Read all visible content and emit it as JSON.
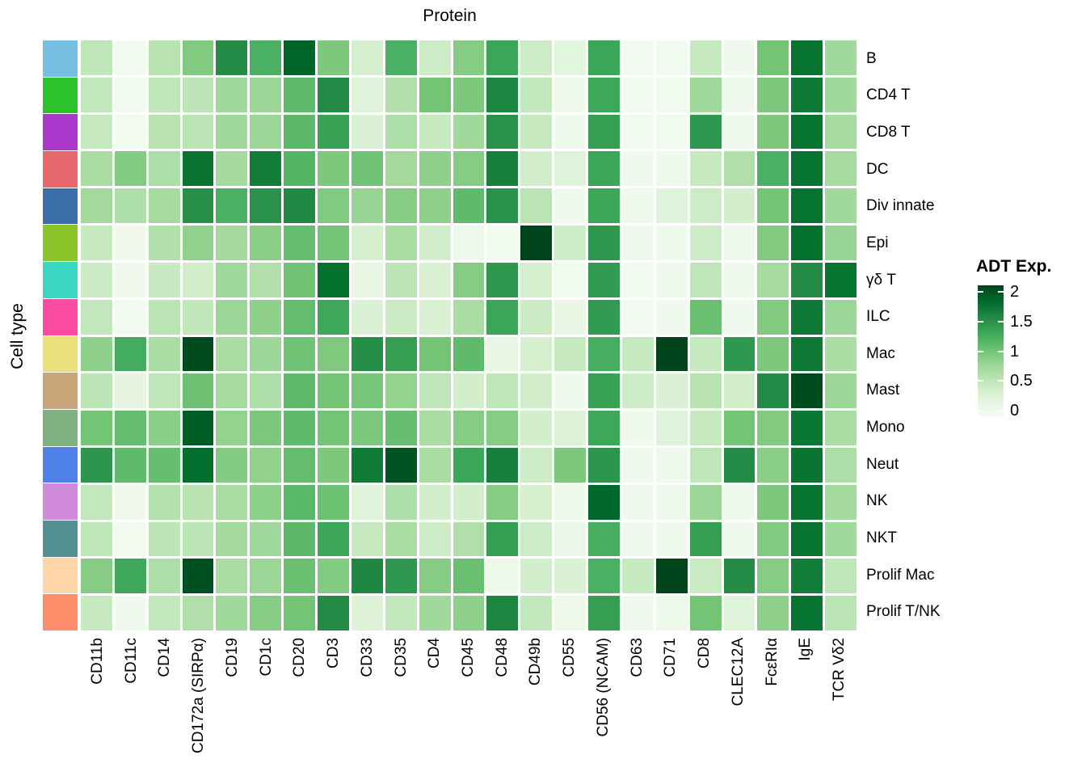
{
  "title": "Protein",
  "y_axis_title": "Cell type",
  "legend": {
    "title": "ADT Exp.",
    "tick_values": [
      2,
      1.5,
      1,
      0.5,
      0
    ],
    "tick_labels": [
      "2",
      "1.5",
      "1",
      "0.5",
      "0"
    ],
    "min": 0,
    "max": 2,
    "color_low": "#f7fcf5",
    "color_high": "#00441b"
  },
  "cell_type_annotation_colors": [
    {
      "label": "B",
      "color": "#76bfe3"
    },
    {
      "label": "CD4 T",
      "color": "#2cc22a"
    },
    {
      "label": "CD8 T",
      "color": "#aa38ca"
    },
    {
      "label": "DC",
      "color": "#e7686c"
    },
    {
      "label": "Div innate",
      "color": "#3a6fa8"
    },
    {
      "label": "Epi",
      "color": "#8bc42b"
    },
    {
      "label": "γδ T",
      "color": "#3ad8c2"
    },
    {
      "label": "ILC",
      "color": "#fb4ba3"
    },
    {
      "label": "Mac",
      "color": "#e9e07a"
    },
    {
      "label": "Mast",
      "color": "#c8a67a"
    },
    {
      "label": "Mono",
      "color": "#7db280"
    },
    {
      "label": "Neut",
      "color": "#4e80e8"
    },
    {
      "label": "NK",
      "color": "#d18bdd"
    },
    {
      "label": "NKT",
      "color": "#529091"
    },
    {
      "label": "Prolif Mac",
      "color": "#fdd5a7"
    },
    {
      "label": "Prolif T/NK",
      "color": "#fc8d6a"
    }
  ],
  "chart_data": {
    "type": "heatmap",
    "title": "Protein",
    "x_axis_label": "Protein",
    "y_axis_label": "Cell type",
    "value_label": "ADT Exp.",
    "value_range": [
      0,
      2
    ],
    "colormap": "Greens",
    "colormap_ramp": [
      "#f7fcf5",
      "#e5f5e0",
      "#c7e9c0",
      "#a1d99b",
      "#74c476",
      "#41ab5d",
      "#238b45",
      "#006d2c",
      "#00441b"
    ],
    "x_categories": [
      "CD11b",
      "CD11c",
      "CD14",
      "CD172a (SIRPα)",
      "CD19",
      "CD1c",
      "CD20",
      "CD3",
      "CD33",
      "CD35",
      "CD4",
      "CD45",
      "CD48",
      "CD49b",
      "CD55",
      "CD56 (NCAM)",
      "CD63",
      "CD71",
      "CD8",
      "CLEC12A",
      "FcεRIα",
      "IgE",
      "TCR Vδ2"
    ],
    "y_categories": [
      "B",
      "CD4 T",
      "CD8 T",
      "DC",
      "Div innate",
      "Epi",
      "γδ T",
      "ILC",
      "Mac",
      "Mast",
      "Mono",
      "Neut",
      "NK",
      "NKT",
      "Prolif Mac",
      "Prolif T/NK"
    ],
    "values": [
      [
        0.55,
        0.08,
        0.6,
        0.93,
        1.5,
        1.2,
        1.8,
        0.95,
        0.38,
        1.2,
        0.45,
        0.9,
        1.3,
        0.45,
        0.28,
        1.3,
        0.08,
        0.08,
        0.5,
        0.1,
        1.0,
        1.7,
        0.75
      ],
      [
        0.52,
        0.08,
        0.55,
        0.56,
        0.75,
        0.78,
        1.1,
        1.5,
        0.3,
        0.65,
        1.0,
        0.95,
        1.55,
        0.52,
        0.12,
        1.28,
        0.08,
        0.08,
        0.75,
        0.1,
        0.95,
        1.65,
        0.75
      ],
      [
        0.51,
        0.07,
        0.6,
        0.58,
        0.75,
        0.78,
        1.12,
        1.32,
        0.33,
        0.67,
        0.5,
        0.75,
        1.45,
        0.5,
        0.1,
        1.35,
        0.08,
        0.08,
        1.4,
        0.1,
        0.95,
        1.7,
        0.72
      ],
      [
        0.7,
        0.92,
        0.67,
        1.68,
        0.73,
        1.62,
        1.15,
        0.95,
        1.02,
        0.74,
        0.85,
        0.9,
        1.6,
        0.42,
        0.3,
        1.3,
        0.1,
        0.12,
        0.5,
        0.65,
        1.2,
        1.7,
        0.72
      ],
      [
        0.74,
        0.66,
        0.72,
        1.47,
        1.2,
        1.45,
        1.52,
        0.92,
        0.8,
        0.9,
        0.85,
        1.1,
        1.45,
        0.58,
        0.1,
        1.3,
        0.12,
        0.3,
        0.45,
        0.4,
        1.0,
        1.7,
        0.75
      ],
      [
        0.5,
        0.09,
        0.64,
        0.84,
        0.73,
        0.88,
        1.07,
        1.0,
        0.38,
        0.68,
        0.4,
        0.15,
        0.08,
        2.0,
        0.44,
        1.4,
        0.1,
        0.1,
        0.45,
        0.12,
        0.93,
        1.72,
        0.8
      ],
      [
        0.46,
        0.09,
        0.49,
        0.42,
        0.75,
        0.64,
        1.02,
        1.72,
        0.2,
        0.57,
        0.35,
        0.9,
        1.4,
        0.38,
        0.08,
        1.38,
        0.08,
        0.1,
        0.55,
        0.1,
        0.72,
        1.5,
        1.7
      ],
      [
        0.53,
        0.08,
        0.58,
        0.54,
        0.77,
        0.85,
        1.08,
        1.28,
        0.33,
        0.47,
        0.35,
        0.7,
        1.3,
        0.46,
        0.2,
        1.38,
        0.08,
        0.1,
        1.05,
        0.1,
        0.93,
        1.65,
        0.77
      ],
      [
        0.85,
        1.24,
        0.69,
        1.95,
        0.7,
        0.77,
        1.02,
        0.94,
        1.48,
        1.35,
        1.0,
        1.1,
        0.2,
        0.38,
        0.5,
        1.22,
        0.5,
        2.0,
        0.5,
        1.4,
        0.95,
        1.65,
        0.68
      ],
      [
        0.57,
        0.25,
        0.55,
        1.03,
        0.72,
        0.66,
        1.1,
        1.0,
        0.98,
        0.83,
        0.55,
        0.4,
        0.55,
        0.42,
        0.1,
        1.32,
        0.45,
        0.33,
        0.6,
        0.42,
        1.5,
        1.95,
        0.77
      ],
      [
        1.0,
        1.08,
        0.88,
        1.85,
        0.83,
        0.96,
        1.1,
        1.0,
        0.95,
        1.06,
        0.7,
        0.9,
        0.9,
        0.4,
        0.32,
        1.28,
        0.12,
        0.3,
        0.5,
        1.0,
        0.93,
        1.67,
        0.7
      ],
      [
        1.42,
        1.1,
        1.06,
        1.73,
        0.92,
        0.84,
        1.08,
        0.95,
        1.63,
        1.9,
        0.7,
        1.3,
        1.6,
        0.45,
        0.95,
        1.42,
        0.1,
        0.12,
        0.55,
        1.5,
        0.88,
        1.68,
        0.67
      ],
      [
        0.52,
        0.09,
        0.62,
        0.6,
        0.7,
        0.87,
        1.13,
        1.04,
        0.3,
        0.66,
        0.4,
        0.4,
        0.9,
        0.38,
        0.12,
        1.78,
        0.1,
        0.1,
        0.78,
        0.1,
        0.95,
        1.7,
        0.73
      ],
      [
        0.55,
        0.07,
        0.56,
        0.57,
        0.73,
        0.76,
        1.12,
        1.3,
        0.5,
        0.69,
        0.45,
        0.65,
        1.35,
        0.45,
        0.18,
        1.22,
        0.1,
        0.1,
        1.35,
        0.1,
        0.92,
        1.7,
        0.75
      ],
      [
        0.9,
        1.27,
        0.67,
        1.93,
        0.7,
        0.77,
        1.05,
        0.92,
        1.53,
        1.4,
        0.9,
        1.05,
        0.15,
        0.4,
        0.34,
        1.2,
        0.5,
        2.0,
        0.48,
        1.5,
        0.9,
        1.62,
        0.55
      ],
      [
        0.5,
        0.1,
        0.52,
        0.65,
        0.75,
        0.9,
        1.0,
        1.5,
        0.32,
        0.52,
        0.75,
        0.85,
        1.55,
        0.52,
        0.14,
        1.35,
        0.1,
        0.15,
        1.0,
        0.3,
        0.85,
        1.7,
        0.57
      ]
    ]
  }
}
